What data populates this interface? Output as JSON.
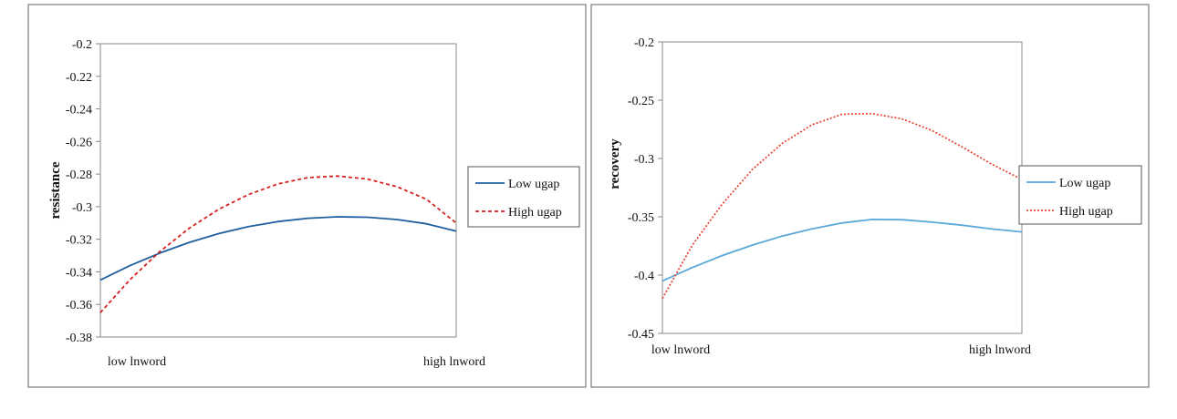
{
  "chart_data": [
    {
      "type": "line",
      "title": "",
      "xlabel": "",
      "ylabel": "resistance",
      "x": [
        0,
        1,
        2,
        3,
        4,
        5,
        6,
        7,
        8,
        9,
        10,
        11,
        12
      ],
      "x_tick_labels": [
        "low lnword",
        "high lnword"
      ],
      "ylim": [
        -0.38,
        -0.2
      ],
      "yticks": [
        -0.2,
        -0.22,
        -0.24,
        -0.26,
        -0.28,
        -0.3,
        -0.32,
        -0.34,
        -0.36,
        -0.38
      ],
      "grid": false,
      "legend": "right",
      "series": [
        {
          "name": "Low ugap",
          "color": "#1f5fa0",
          "style": "solid",
          "values": [
            -0.345,
            -0.3362,
            -0.3285,
            -0.3219,
            -0.3165,
            -0.3122,
            -0.3091,
            -0.3071,
            -0.3062,
            -0.3065,
            -0.3079,
            -0.3105,
            -0.315
          ]
        },
        {
          "name": "High ugap",
          "color": "#d62020",
          "style": "dashed",
          "values": [
            -0.365,
            -0.3448,
            -0.3276,
            -0.3132,
            -0.3015,
            -0.2925,
            -0.286,
            -0.2822,
            -0.2812,
            -0.283,
            -0.2877,
            -0.2955,
            -0.31
          ]
        }
      ]
    },
    {
      "type": "line",
      "title": "",
      "xlabel": "",
      "ylabel": "recovery",
      "x": [
        0,
        1,
        2,
        3,
        4,
        5,
        6,
        7,
        8,
        9,
        10,
        11,
        12
      ],
      "x_tick_labels": [
        "low lnword",
        "high lnword"
      ],
      "ylim": [
        -0.45,
        -0.2
      ],
      "yticks": [
        -0.2,
        -0.25,
        -0.3,
        -0.35,
        -0.4,
        -0.45
      ],
      "grid": false,
      "legend": "right",
      "series": [
        {
          "name": "Low ugap",
          "color": "#5aa8d8",
          "style": "solid",
          "values": [
            -0.405,
            -0.3935,
            -0.3832,
            -0.3743,
            -0.3666,
            -0.3603,
            -0.3553,
            -0.3523,
            -0.3525,
            -0.3546,
            -0.3572,
            -0.3605,
            -0.363
          ]
        },
        {
          "name": "High ugap",
          "color": "#e8483a",
          "style": "dotted",
          "values": [
            -0.42,
            -0.3744,
            -0.339,
            -0.3095,
            -0.287,
            -0.271,
            -0.262,
            -0.2615,
            -0.266,
            -0.276,
            -0.29,
            -0.305,
            -0.318
          ]
        }
      ]
    }
  ]
}
